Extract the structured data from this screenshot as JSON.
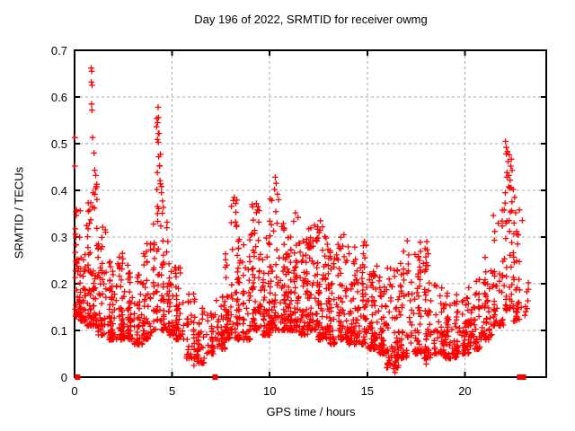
{
  "chart_data": {
    "type": "scatter",
    "title": "Day 196 of 2022, SRMTID for receiver owmg",
    "xlabel": "GPS time / hours",
    "ylabel": "SRMTID / TECUs",
    "xlim": [
      0,
      24.17
    ],
    "ylim": [
      0,
      0.7
    ],
    "xticks": [
      0,
      5,
      10,
      15,
      20
    ],
    "yticks": [
      0,
      0.1,
      0.2,
      0.3,
      0.4,
      0.5,
      0.6,
      0.7
    ],
    "grid": true,
    "legend": "none",
    "background_color": "#ffffff",
    "axis_color": "#000000",
    "grid_color": "#aaaaaa",
    "marker_color": "#ff0000",
    "main_series": {
      "name": "SRMTID",
      "marker": "plus",
      "envelope_bins": [
        [
          0.0,
          0.3,
          0.13,
          0.36,
          40
        ],
        [
          0.3,
          0.6,
          0.12,
          0.3,
          40
        ],
        [
          0.6,
          0.9,
          0.11,
          0.38,
          40
        ],
        [
          0.9,
          1.2,
          0.11,
          0.42,
          40
        ],
        [
          1.2,
          1.6,
          0.09,
          0.33,
          45
        ],
        [
          1.6,
          2.0,
          0.08,
          0.28,
          50
        ],
        [
          2.0,
          2.5,
          0.08,
          0.27,
          55
        ],
        [
          2.5,
          3.0,
          0.08,
          0.24,
          50
        ],
        [
          3.0,
          3.5,
          0.07,
          0.22,
          45
        ],
        [
          3.5,
          4.0,
          0.08,
          0.31,
          45
        ],
        [
          4.0,
          4.2,
          0.1,
          0.33,
          20
        ],
        [
          4.2,
          4.45,
          0.12,
          0.56,
          30
        ],
        [
          4.45,
          4.8,
          0.1,
          0.38,
          35
        ],
        [
          4.8,
          5.2,
          0.09,
          0.3,
          40
        ],
        [
          5.2,
          5.7,
          0.08,
          0.24,
          40
        ],
        [
          5.7,
          6.2,
          0.04,
          0.18,
          40
        ],
        [
          6.2,
          6.7,
          0.03,
          0.15,
          35
        ],
        [
          6.7,
          7.2,
          0.05,
          0.14,
          30
        ],
        [
          7.2,
          7.7,
          0.06,
          0.2,
          40
        ],
        [
          7.7,
          8.0,
          0.08,
          0.28,
          35
        ],
        [
          8.0,
          8.4,
          0.08,
          0.38,
          45
        ],
        [
          8.4,
          9.0,
          0.08,
          0.31,
          55
        ],
        [
          9.0,
          9.5,
          0.1,
          0.37,
          55
        ],
        [
          9.5,
          10.0,
          0.09,
          0.31,
          55
        ],
        [
          10.0,
          10.5,
          0.1,
          0.43,
          60
        ],
        [
          10.5,
          11.0,
          0.1,
          0.33,
          60
        ],
        [
          11.0,
          11.5,
          0.1,
          0.35,
          60
        ],
        [
          11.5,
          12.0,
          0.09,
          0.31,
          60
        ],
        [
          12.0,
          12.5,
          0.1,
          0.33,
          60
        ],
        [
          12.5,
          13.0,
          0.08,
          0.33,
          60
        ],
        [
          13.0,
          13.5,
          0.07,
          0.28,
          55
        ],
        [
          13.5,
          14.0,
          0.08,
          0.3,
          55
        ],
        [
          14.0,
          14.5,
          0.07,
          0.28,
          55
        ],
        [
          14.5,
          15.0,
          0.07,
          0.29,
          55
        ],
        [
          15.0,
          15.5,
          0.06,
          0.25,
          55
        ],
        [
          15.5,
          16.0,
          0.05,
          0.22,
          55
        ],
        [
          16.0,
          16.6,
          0.02,
          0.24,
          60
        ],
        [
          16.6,
          17.2,
          0.04,
          0.27,
          55
        ],
        [
          17.2,
          17.8,
          0.05,
          0.29,
          55
        ],
        [
          17.8,
          18.4,
          0.04,
          0.29,
          55
        ],
        [
          18.4,
          19.0,
          0.05,
          0.2,
          55
        ],
        [
          19.0,
          19.6,
          0.04,
          0.18,
          55
        ],
        [
          19.6,
          20.2,
          0.05,
          0.17,
          55
        ],
        [
          20.2,
          20.8,
          0.06,
          0.21,
          55
        ],
        [
          20.8,
          21.4,
          0.08,
          0.26,
          50
        ],
        [
          21.4,
          22.0,
          0.11,
          0.36,
          45
        ],
        [
          22.0,
          22.5,
          0.14,
          0.48,
          45
        ],
        [
          22.5,
          23.0,
          0.12,
          0.42,
          30
        ],
        [
          23.0,
          23.3,
          0.13,
          0.21,
          8
        ]
      ],
      "peak_points": [
        [
          0.02,
          0.513
        ],
        [
          0.02,
          0.452
        ],
        [
          0.85,
          0.662
        ],
        [
          0.88,
          0.655
        ],
        [
          0.86,
          0.632
        ],
        [
          0.9,
          0.625
        ],
        [
          0.87,
          0.585
        ],
        [
          0.89,
          0.572
        ],
        [
          0.92,
          0.513
        ],
        [
          1.0,
          0.48
        ],
        [
          1.03,
          0.443
        ],
        [
          1.08,
          0.432
        ],
        [
          1.12,
          0.408
        ],
        [
          0.95,
          0.395
        ],
        [
          4.28,
          0.578
        ],
        [
          4.3,
          0.556
        ],
        [
          4.26,
          0.545
        ],
        [
          4.33,
          0.522
        ],
        [
          4.29,
          0.503
        ],
        [
          4.31,
          0.472
        ],
        [
          4.36,
          0.452
        ],
        [
          4.24,
          0.438
        ],
        [
          4.38,
          0.421
        ],
        [
          4.45,
          0.408
        ],
        [
          8.18,
          0.385
        ],
        [
          8.25,
          0.372
        ],
        [
          9.32,
          0.372
        ],
        [
          9.38,
          0.358
        ],
        [
          10.28,
          0.428
        ],
        [
          10.33,
          0.415
        ],
        [
          10.25,
          0.402
        ],
        [
          10.4,
          0.392
        ],
        [
          10.45,
          0.38
        ],
        [
          11.32,
          0.352
        ],
        [
          11.45,
          0.342
        ],
        [
          12.6,
          0.335
        ],
        [
          12.7,
          0.322
        ],
        [
          13.8,
          0.305
        ],
        [
          14.85,
          0.29
        ],
        [
          17.05,
          0.292
        ],
        [
          18.05,
          0.29
        ],
        [
          22.08,
          0.505
        ],
        [
          22.12,
          0.492
        ],
        [
          22.18,
          0.483
        ],
        [
          22.28,
          0.476
        ],
        [
          22.22,
          0.462
        ],
        [
          22.35,
          0.452
        ],
        [
          22.42,
          0.443
        ],
        [
          22.25,
          0.432
        ],
        [
          22.32,
          0.422
        ],
        [
          22.48,
          0.402
        ],
        [
          22.55,
          0.385
        ],
        [
          22.6,
          0.352
        ],
        [
          22.52,
          0.33
        ],
        [
          22.65,
          0.312
        ],
        [
          22.7,
          0.285
        ],
        [
          6.12,
          0.025
        ],
        [
          6.22,
          0.042
        ],
        [
          16.35,
          0.018
        ],
        [
          16.42,
          0.01
        ],
        [
          16.48,
          0.032
        ],
        [
          16.55,
          0.048
        ],
        [
          17.92,
          0.04
        ],
        [
          18.02,
          0.028
        ]
      ]
    },
    "flag_series": {
      "name": "zero-flags",
      "marker": "filled-square",
      "points": [
        [
          0.15,
          0
        ],
        [
          7.2,
          0
        ],
        [
          22.8,
          0
        ],
        [
          23.0,
          0
        ]
      ]
    }
  }
}
